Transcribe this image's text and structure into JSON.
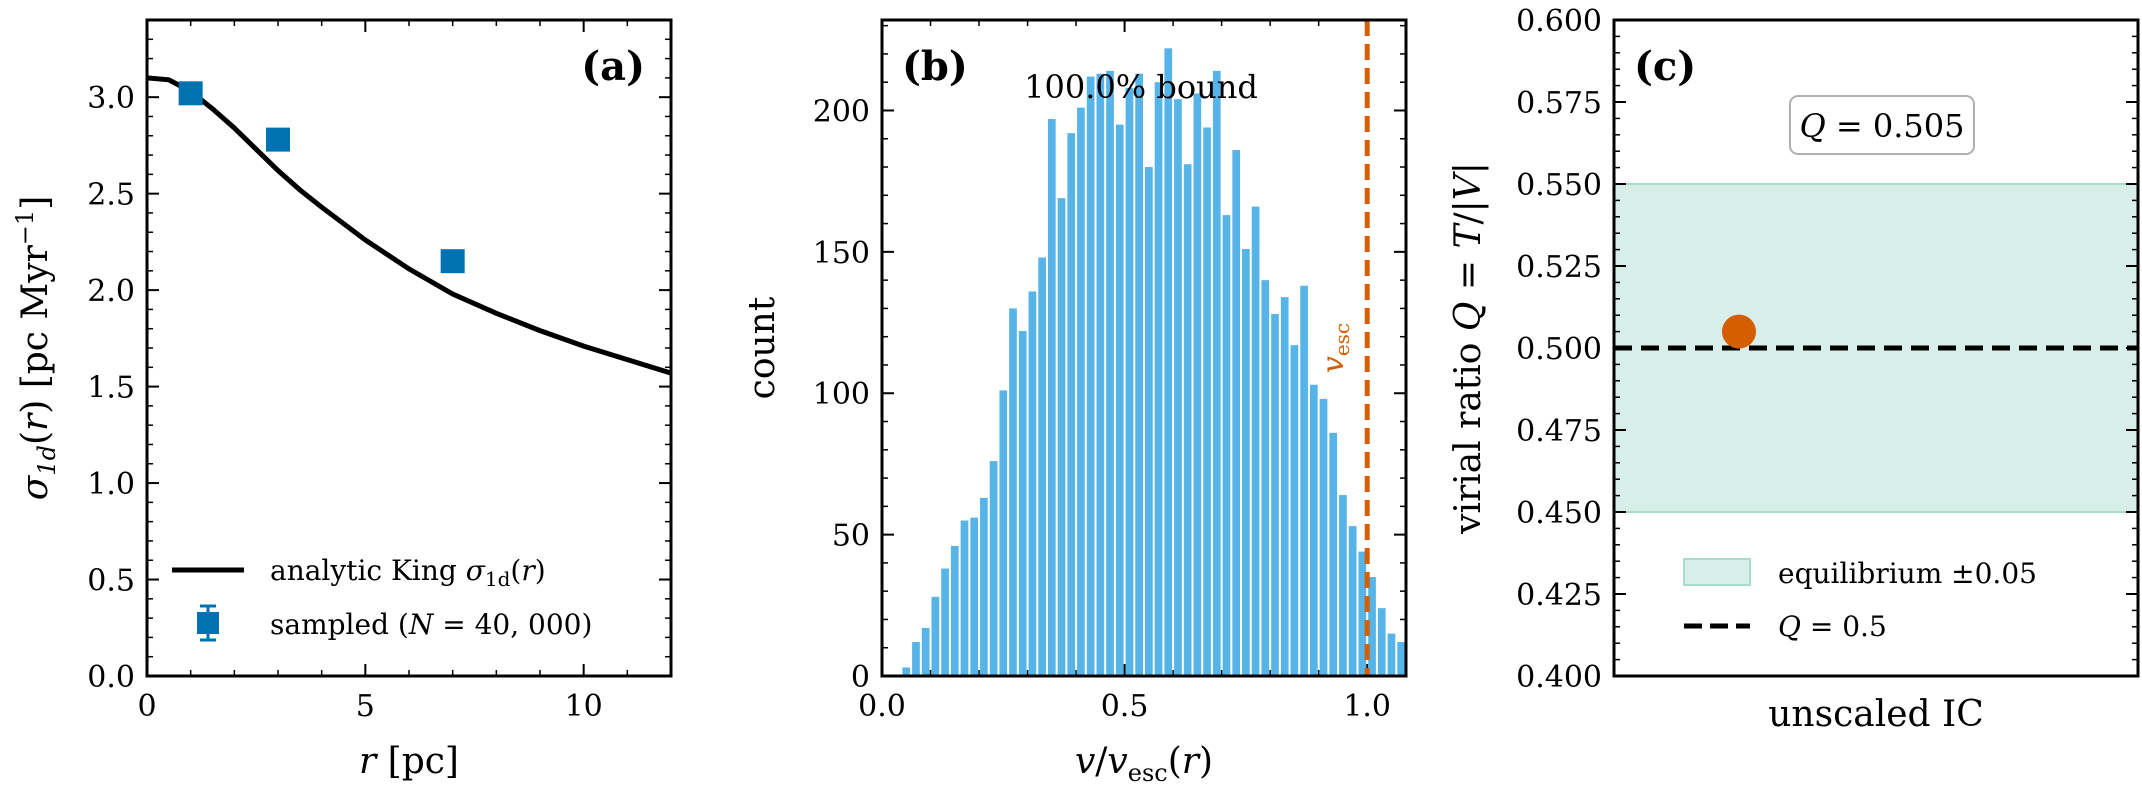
{
  "chart_data": [
    {
      "panel": "(a)",
      "type": "line",
      "xlabel": "r [pc]",
      "ylabel": "σ_1d(r) [pc Myr⁻¹]",
      "xlim": [
        0,
        12
      ],
      "ylim": [
        0,
        3.4
      ],
      "xticks": [
        "0",
        "5",
        "10"
      ],
      "yticks": [
        "0.0",
        "0.5",
        "1.0",
        "1.5",
        "2.0",
        "2.5",
        "3.0"
      ],
      "series": [
        {
          "name": "analytic King σ1d(r)",
          "style": "line",
          "color": "#000000",
          "x": [
            0,
            0.5,
            1,
            1.5,
            2,
            2.5,
            3,
            3.5,
            4,
            5,
            6,
            7,
            8,
            9,
            10,
            11,
            12
          ],
          "y": [
            3.1,
            3.09,
            3.03,
            2.94,
            2.84,
            2.73,
            2.62,
            2.52,
            2.43,
            2.26,
            2.11,
            1.98,
            1.88,
            1.79,
            1.71,
            1.64,
            1.57
          ]
        },
        {
          "name": "sampled (N = 40,000)",
          "style": "marker",
          "color": "#0072b2",
          "x": [
            1,
            3,
            7
          ],
          "y": [
            3.02,
            2.78,
            2.15
          ]
        }
      ],
      "grid": false,
      "legend_position": "lower-left"
    },
    {
      "panel": "(b)",
      "type": "bar",
      "xlabel": "v/v_esc(r)",
      "ylabel": "count",
      "xlim": [
        0,
        1.08
      ],
      "ylim": [
        0,
        232
      ],
      "xticks": [
        "0.0",
        "0.5",
        "1.0"
      ],
      "yticks": [
        "0",
        "50",
        "100",
        "150",
        "200"
      ],
      "annotation": "100.0% bound",
      "vline_label": "v_esc",
      "vline_x": 1.0,
      "color": "#56b4e9",
      "vline_color": "#d55e00",
      "bin_width": 0.02,
      "bin_start": 0.04,
      "values": [
        3,
        12,
        17,
        28,
        38,
        46,
        55,
        56,
        63,
        76,
        101,
        130,
        122,
        136,
        148,
        197,
        169,
        192,
        201,
        212,
        213,
        214,
        195,
        208,
        213,
        180,
        210,
        222,
        204,
        181,
        206,
        194,
        214,
        163,
        186,
        151,
        166,
        140,
        128,
        134,
        117,
        138,
        103,
        98,
        86,
        64,
        53,
        44,
        35,
        24,
        15,
        12,
        10,
        6
      ]
    },
    {
      "panel": "(c)",
      "type": "scatter",
      "xlabel": "unscaled IC",
      "ylabel": "virial ratio Q = T/|V|",
      "ylim": [
        0.4,
        0.6
      ],
      "yticks": [
        "0.400",
        "0.425",
        "0.450",
        "0.475",
        "0.500",
        "0.525",
        "0.550",
        "0.575",
        "0.600"
      ],
      "band": [
        0.45,
        0.55
      ],
      "band_color": "#d8efe9",
      "reference_line": 0.5,
      "point": 0.505,
      "point_color": "#d55e00",
      "box_label": "Q = 0.505",
      "legend": [
        "equilibrium ±0.05",
        "Q = 0.5"
      ],
      "legend_position": "lower-center"
    }
  ]
}
